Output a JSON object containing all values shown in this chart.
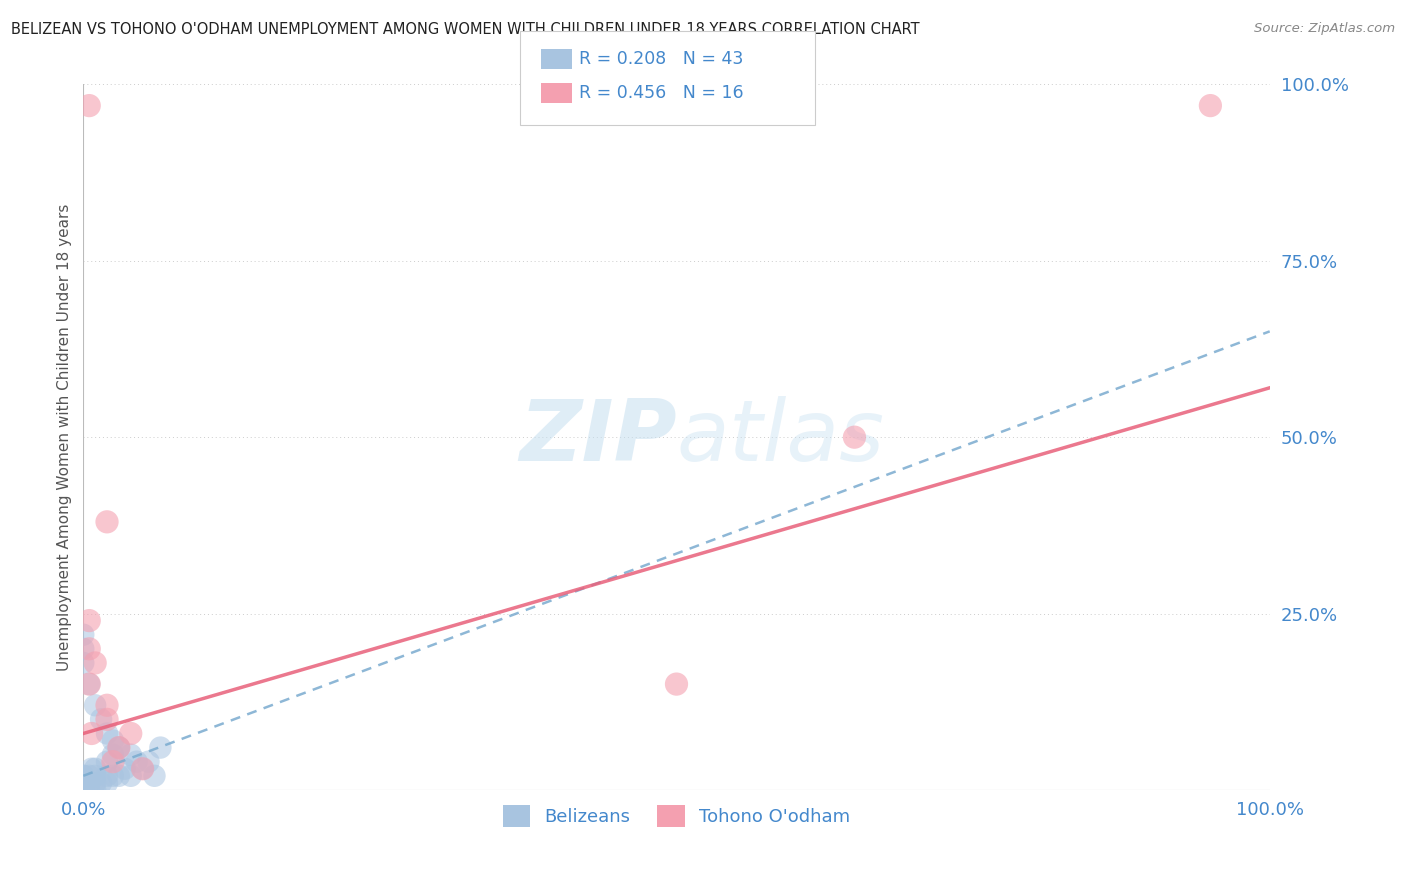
{
  "title": "BELIZEAN VS TOHONO O'ODHAM UNEMPLOYMENT AMONG WOMEN WITH CHILDREN UNDER 18 YEARS CORRELATION CHART",
  "source": "Source: ZipAtlas.com",
  "ylabel": "Unemployment Among Women with Children Under 18 years",
  "xlim": [
    0,
    1.0
  ],
  "ylim": [
    0,
    1.0
  ],
  "xtick_labels": [
    "0.0%",
    "100.0%"
  ],
  "ytick_labels": [
    "25.0%",
    "50.0%",
    "75.0%",
    "100.0%"
  ],
  "ytick_positions": [
    0.25,
    0.5,
    0.75,
    1.0
  ],
  "belizean_color": "#a8c4e0",
  "tohono_color": "#f4a0b0",
  "grid_color": "#cccccc",
  "axis_label_color": "#4488cc",
  "R_belizean": 0.208,
  "N_belizean": 43,
  "R_tohono": 0.456,
  "N_tohono": 16,
  "bel_reg_intercept": 0.02,
  "bel_reg_slope": 0.63,
  "toh_reg_intercept": 0.08,
  "toh_reg_slope": 0.49,
  "bel_scatter_x": [
    0.0,
    0.0,
    0.0,
    0.0,
    0.0,
    0.0,
    0.0,
    0.0,
    0.0,
    0.0,
    0.005,
    0.005,
    0.005,
    0.007,
    0.01,
    0.01,
    0.01,
    0.01,
    0.015,
    0.02,
    0.02,
    0.02,
    0.025,
    0.025,
    0.03,
    0.03,
    0.035,
    0.04,
    0.04,
    0.045,
    0.05,
    0.055,
    0.06,
    0.065,
    0.0,
    0.0,
    0.0,
    0.005,
    0.01,
    0.015,
    0.02,
    0.025,
    0.03
  ],
  "bel_scatter_y": [
    0.0,
    0.0,
    0.0,
    0.0,
    0.0,
    0.01,
    0.01,
    0.01,
    0.02,
    0.02,
    0.0,
    0.01,
    0.02,
    0.03,
    0.0,
    0.01,
    0.02,
    0.03,
    0.01,
    0.01,
    0.02,
    0.04,
    0.02,
    0.05,
    0.02,
    0.06,
    0.03,
    0.02,
    0.05,
    0.04,
    0.03,
    0.04,
    0.02,
    0.06,
    0.2,
    0.18,
    0.22,
    0.15,
    0.12,
    0.1,
    0.08,
    0.07,
    0.06
  ],
  "toh_scatter_x": [
    0.005,
    0.005,
    0.01,
    0.02,
    0.02,
    0.03,
    0.04,
    0.05,
    0.5,
    0.65,
    0.005,
    0.02,
    0.025,
    0.005,
    0.007,
    0.95
  ],
  "toh_scatter_y": [
    0.97,
    0.2,
    0.18,
    0.38,
    0.1,
    0.06,
    0.08,
    0.03,
    0.15,
    0.5,
    0.15,
    0.12,
    0.04,
    0.24,
    0.08,
    0.97
  ]
}
